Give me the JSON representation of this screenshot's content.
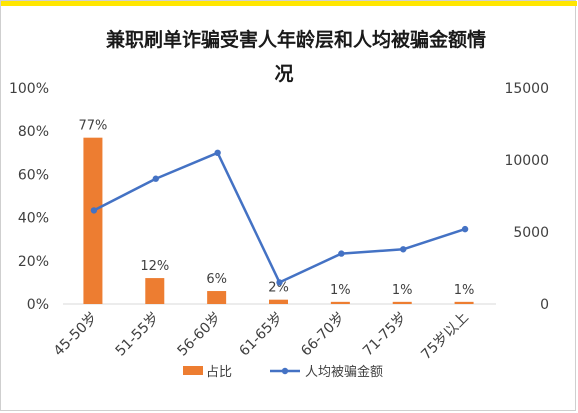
{
  "chart_data": {
    "type": "bar",
    "title_lines": [
      "兼职刷单诈骗受害人年龄层和人均被骗金额情",
      "况"
    ],
    "categories": [
      "45-50岁",
      "51-55岁",
      "56-60岁",
      "61-65岁",
      "66-70岁",
      "71-75岁",
      "75岁以上"
    ],
    "series": [
      {
        "name": "占比",
        "kind": "bar",
        "axis": "left",
        "color": "#ed7d31",
        "values": [
          77,
          12,
          6,
          2,
          1,
          1,
          1
        ],
        "data_labels": [
          "77%",
          "12%",
          "6%",
          "2%",
          "1%",
          "1%",
          "1%"
        ]
      },
      {
        "name": "人均被骗金额",
        "kind": "line",
        "axis": "right",
        "color": "#4472c4",
        "values": [
          6500,
          8700,
          10500,
          1500,
          3500,
          3800,
          5200
        ]
      }
    ],
    "y_left": {
      "range": [
        0,
        100
      ],
      "ticks": [
        0,
        20,
        40,
        60,
        80,
        100
      ],
      "tick_labels": [
        "0%",
        "20%",
        "40%",
        "60%",
        "80%",
        "100%"
      ]
    },
    "y_right": {
      "range": [
        0,
        15000
      ],
      "ticks": [
        0,
        5000,
        10000,
        15000
      ],
      "tick_labels": [
        "0",
        "5000",
        "10000",
        "15000"
      ]
    },
    "grid": false,
    "legend_position": "bottom"
  }
}
